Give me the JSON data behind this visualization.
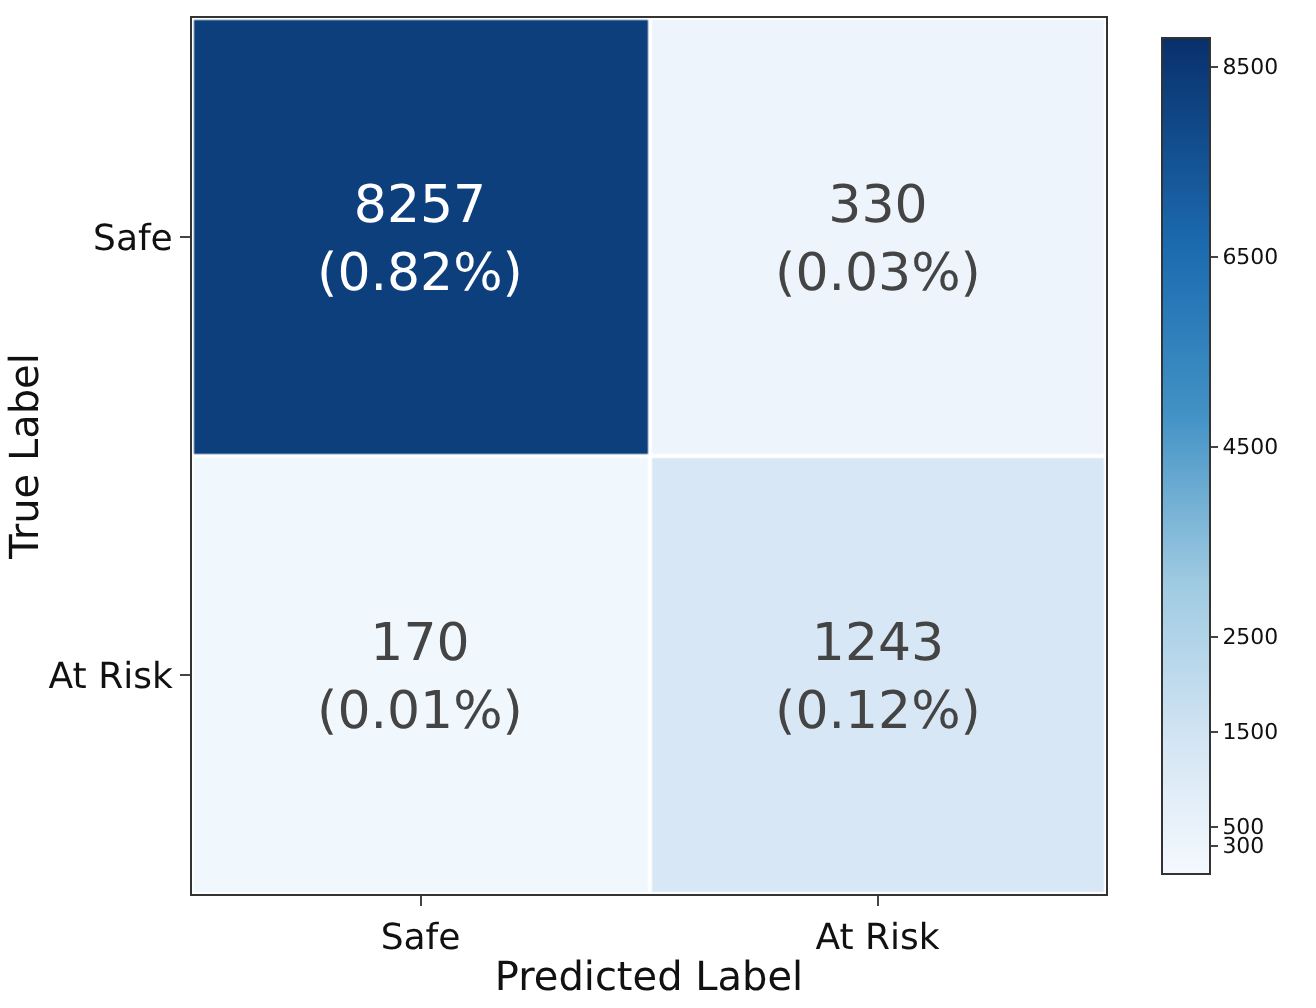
{
  "chart_data": {
    "type": "heatmap",
    "xlabel": "Predicted Label",
    "ylabel": "True Label",
    "categories": [
      "Safe",
      "At Risk"
    ],
    "y_categories": [
      "Safe",
      "At Risk"
    ],
    "cells": [
      [
        8257,
        330
      ],
      [
        170,
        1243
      ]
    ],
    "cell_labels": [
      [
        "8257\n(0.82%)",
        "330\n(0.03%)"
      ],
      [
        "170\n(0.01%)",
        "1243\n(0.12%)"
      ]
    ],
    "clim": [
      0,
      8800
    ],
    "cticks": [
      300,
      500,
      1500,
      2500,
      4500,
      6500,
      8500
    ]
  }
}
